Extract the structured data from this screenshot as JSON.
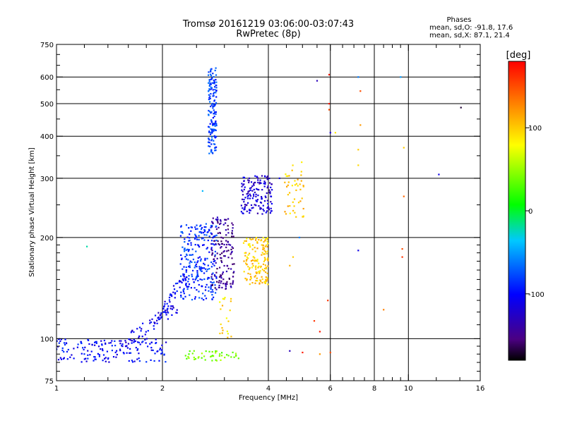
{
  "header": {
    "title_line1": "Tromsø 20161219 03:06:00-03:07:43",
    "title_line2": "RwPretec (8p)",
    "phase_heading": "Phases",
    "phase_o": "mean, sd,O: -91.8, 17.6",
    "phase_x": "mean, sd,X:  87.1, 21.4"
  },
  "colorbar": {
    "title": "[deg]",
    "tick_labels": [
      "100",
      "0",
      "-100"
    ],
    "tick_values": [
      100,
      0,
      -100
    ],
    "range": [
      -180,
      180
    ],
    "colors": [
      "#000000",
      "#4b0082",
      "#0000ff",
      "#00c8ff",
      "#00ff00",
      "#ffff00",
      "#ff8000",
      "#ff0000"
    ]
  },
  "chart_data": {
    "type": "scatter",
    "title": "Tromsø 20161219 03:06:00-03:07:43",
    "subtitle": "RwPretec (8p)",
    "xlabel": "Frequency [MHz]",
    "ylabel": "Stationary phase Virtual Height [km]",
    "xscale": "log",
    "yscale": "log",
    "xlim": [
      1,
      16
    ],
    "ylim": [
      75,
      750
    ],
    "xticks": [
      1,
      2,
      4,
      6,
      8,
      10,
      16
    ],
    "yticks": [
      75,
      100,
      200,
      300,
      400,
      500,
      600,
      750
    ],
    "x_major_gridlines": [
      2,
      4,
      6,
      8,
      10
    ],
    "y_major_gridlines": [
      100,
      200,
      300,
      400,
      500,
      600
    ],
    "x_minor_ticks": [
      1.2,
      1.4,
      1.6,
      1.8,
      2.5,
      3,
      3.5,
      4.5,
      5,
      5.5,
      6.5,
      7,
      7.5,
      8.5,
      9,
      9.5,
      12,
      14
    ],
    "y_minor_ticks": [
      80,
      85,
      90,
      95,
      110,
      120,
      130,
      140,
      150,
      160,
      170,
      180,
      190,
      250,
      350,
      450,
      550,
      650,
      700
    ],
    "grid": true,
    "colorbar_quantity": "phase [deg]",
    "clusters": [
      {
        "x_range": [
          1.0,
          2.05
        ],
        "y_range": [
          85,
          100
        ],
        "phase": -100,
        "count": 160,
        "shape": "band"
      },
      {
        "x_range": [
          1.5,
          2.2
        ],
        "y_range": [
          95,
          125
        ],
        "phase": -110,
        "count": 70,
        "shape": "rising"
      },
      {
        "x_range": [
          2.0,
          2.35
        ],
        "y_range": [
          120,
          160
        ],
        "phase": -105,
        "count": 40,
        "shape": "rising"
      },
      {
        "x_range": [
          2.25,
          2.85
        ],
        "y_range": [
          130,
          220
        ],
        "phase": -85,
        "count": 260,
        "shape": "blob"
      },
      {
        "x_range": [
          2.75,
          3.2
        ],
        "y_range": [
          140,
          230
        ],
        "phase": -145,
        "count": 150,
        "shape": "blob"
      },
      {
        "x_range": [
          2.7,
          2.85
        ],
        "y_range": [
          355,
          640
        ],
        "phase": -80,
        "count": 160,
        "shape": "column"
      },
      {
        "x_range": [
          3.35,
          4.1
        ],
        "y_range": [
          235,
          305
        ],
        "phase": -120,
        "count": 150,
        "shape": "blob"
      },
      {
        "x_range": [
          3.4,
          4.0
        ],
        "y_range": [
          145,
          200
        ],
        "phase": 100,
        "count": 150,
        "shape": "blob"
      },
      {
        "x_range": [
          4.45,
          5.05
        ],
        "y_range": [
          230,
          335
        ],
        "phase": 100,
        "count": 45,
        "shape": "blob"
      },
      {
        "x_range": [
          2.3,
          3.3
        ],
        "y_range": [
          86,
          92
        ],
        "phase": 40,
        "count": 45,
        "shape": "band"
      },
      {
        "x_range": [
          2.9,
          3.15
        ],
        "y_range": [
          100,
          135
        ],
        "phase": 95,
        "count": 20,
        "shape": "blob"
      }
    ],
    "isolated_points": [
      {
        "x": 1.22,
        "y": 188,
        "phase": -20
      },
      {
        "x": 2.6,
        "y": 275,
        "phase": -40
      },
      {
        "x": 4.3,
        "y": 300,
        "phase": -110
      },
      {
        "x": 4.9,
        "y": 200,
        "phase": -60
      },
      {
        "x": 5.5,
        "y": 585,
        "phase": -130
      },
      {
        "x": 5.95,
        "y": 610,
        "phase": 170
      },
      {
        "x": 5.95,
        "y": 500,
        "phase": 170
      },
      {
        "x": 5.95,
        "y": 480,
        "phase": 150
      },
      {
        "x": 6.2,
        "y": 410,
        "phase": 90
      },
      {
        "x": 6.0,
        "y": 410,
        "phase": -120
      },
      {
        "x": 7.2,
        "y": 600,
        "phase": -60
      },
      {
        "x": 7.3,
        "y": 545,
        "phase": 150
      },
      {
        "x": 7.3,
        "y": 432,
        "phase": 120
      },
      {
        "x": 7.2,
        "y": 365,
        "phase": 100
      },
      {
        "x": 7.2,
        "y": 328,
        "phase": 95
      },
      {
        "x": 7.2,
        "y": 183,
        "phase": -110
      },
      {
        "x": 9.5,
        "y": 600,
        "phase": -50
      },
      {
        "x": 9.7,
        "y": 370,
        "phase": 100
      },
      {
        "x": 9.7,
        "y": 265,
        "phase": 140
      },
      {
        "x": 9.6,
        "y": 185,
        "phase": 150
      },
      {
        "x": 9.6,
        "y": 175,
        "phase": 160
      },
      {
        "x": 8.5,
        "y": 122,
        "phase": 130
      },
      {
        "x": 12.2,
        "y": 308,
        "phase": -110
      },
      {
        "x": 14.1,
        "y": 487,
        "phase": -170
      },
      {
        "x": 5.9,
        "y": 130,
        "phase": 160
      },
      {
        "x": 5.6,
        "y": 105,
        "phase": 170
      },
      {
        "x": 5.4,
        "y": 113,
        "phase": 160
      },
      {
        "x": 5.0,
        "y": 91,
        "phase": 170
      },
      {
        "x": 4.6,
        "y": 92,
        "phase": -130
      },
      {
        "x": 5.6,
        "y": 90,
        "phase": 120
      },
      {
        "x": 6.0,
        "y": 91,
        "phase": 150
      },
      {
        "x": 4.6,
        "y": 165,
        "phase": 110
      },
      {
        "x": 4.7,
        "y": 175,
        "phase": 100
      }
    ]
  }
}
